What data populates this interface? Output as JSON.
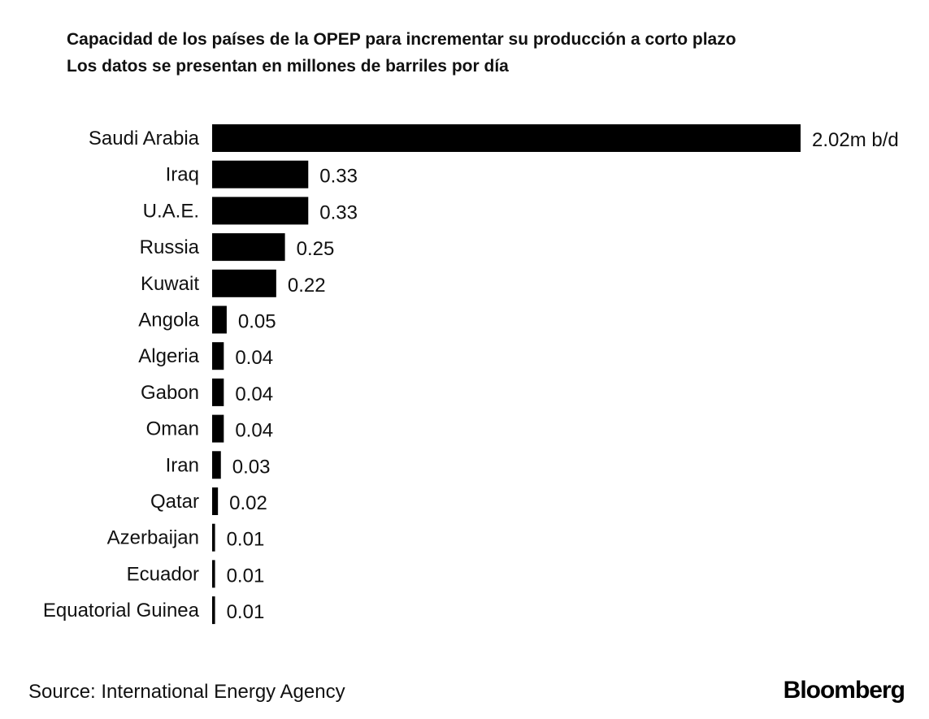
{
  "chart_data": {
    "type": "bar",
    "orientation": "horizontal",
    "title": "Capacidad de los países de la OPEP para incrementar su producción a corto plazo",
    "subtitle": "Los datos se presentan en millones de barriles por día",
    "categories": [
      "Saudi Arabia",
      "Iraq",
      "U.A.E.",
      "Russia",
      "Kuwait",
      "Angola",
      "Algeria",
      "Gabon",
      "Oman",
      "Iran",
      "Qatar",
      "Azerbaijan",
      "Ecuador",
      "Equatorial Guinea"
    ],
    "values": [
      2.02,
      0.33,
      0.33,
      0.25,
      0.22,
      0.05,
      0.04,
      0.04,
      0.04,
      0.03,
      0.02,
      0.01,
      0.01,
      0.01
    ],
    "value_labels": [
      "2.02m b/d",
      "0.33",
      "0.33",
      "0.25",
      "0.22",
      "0.05",
      "0.04",
      "0.04",
      "0.04",
      "0.03",
      "0.02",
      "0.01",
      "0.01",
      "0.01"
    ],
    "xlim": [
      0,
      2.02
    ],
    "grid": false,
    "bar_color": "#000000"
  },
  "footer": {
    "source": "Source: International Energy Agency",
    "brand": "Bloomberg"
  }
}
